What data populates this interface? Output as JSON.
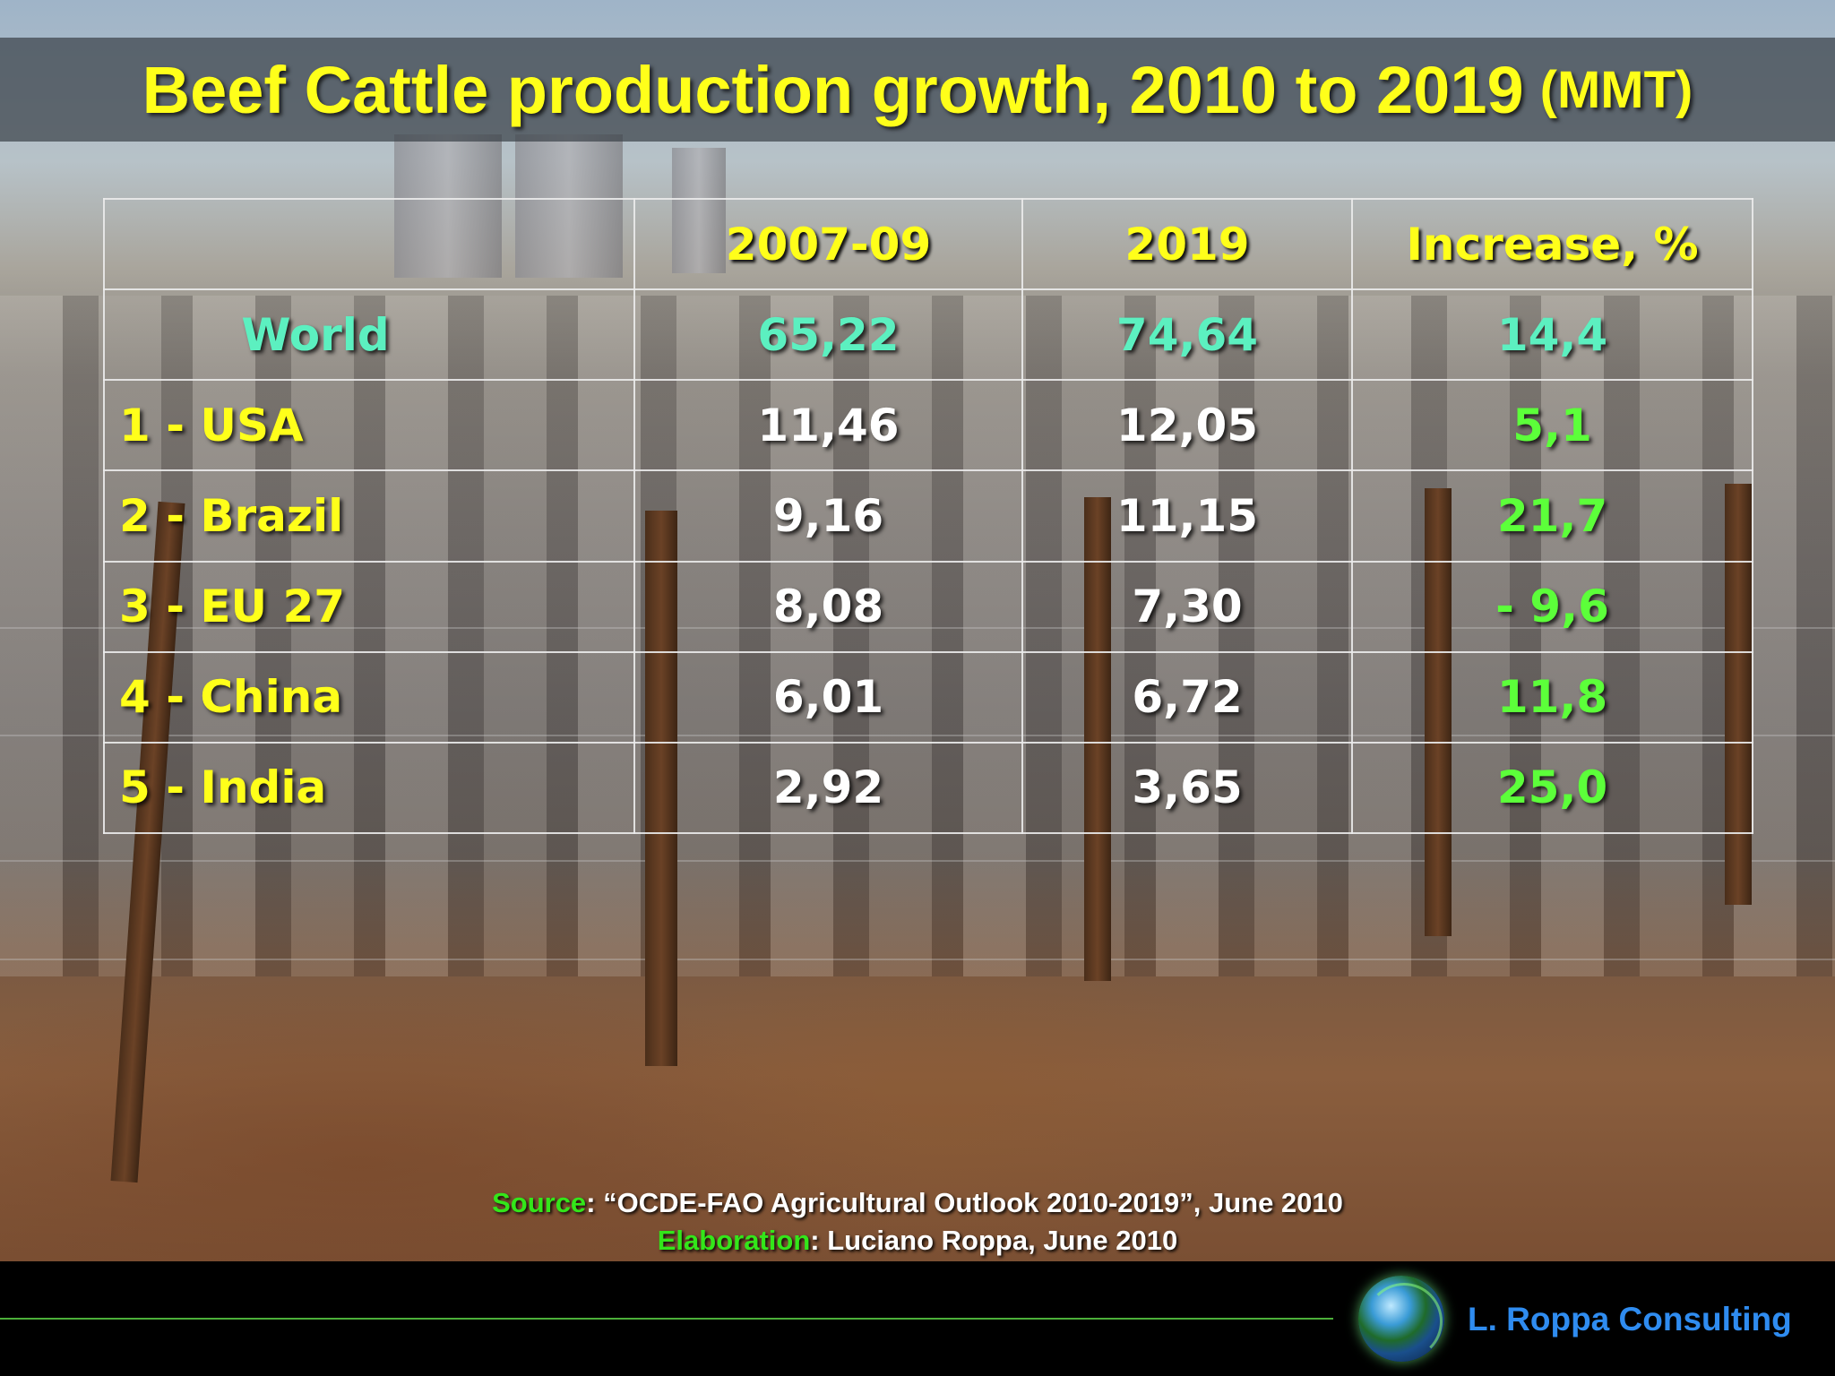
{
  "title": {
    "main": "Beef Cattle production growth, 2010 to 2019",
    "unit": "(MMT)"
  },
  "table": {
    "headers": [
      "",
      "2007-09",
      "2019",
      "Increase, %"
    ],
    "world": {
      "label": "World",
      "v2007_09": "65,22",
      "v2019": "74,64",
      "increase": "14,4"
    },
    "rows": [
      {
        "label": "1 - USA",
        "v2007_09": "11,46",
        "v2019": "12,05",
        "increase": "5,1"
      },
      {
        "label": "2 - Brazil",
        "v2007_09": "9,16",
        "v2019": "11,15",
        "increase": "21,7"
      },
      {
        "label": "3 - EU 27",
        "v2007_09": "8,08",
        "v2019": "7,30",
        "increase": "- 9,6"
      },
      {
        "label": "4 - China",
        "v2007_09": "6,01",
        "v2019": "6,72",
        "increase": "11,8"
      },
      {
        "label": "5 - India",
        "v2007_09": "2,92",
        "v2019": "3,65",
        "increase": "25,0"
      }
    ]
  },
  "source": {
    "source_label": "Source",
    "source_text": ": “OCDE-FAO Agricultural Outlook 2010-2019”, June 2010",
    "elaboration_label": "Elaboration",
    "elaboration_text": ": Luciano Roppa, June 2010"
  },
  "footer": {
    "brand": "L. Roppa Consulting",
    "logo_icon": "globe-icon"
  },
  "colors": {
    "title": "#ffff1a",
    "world_row": "#5cf0c0",
    "increase": "#5cff3a",
    "source_label": "#33e61a",
    "brand": "#2f8cf0"
  }
}
